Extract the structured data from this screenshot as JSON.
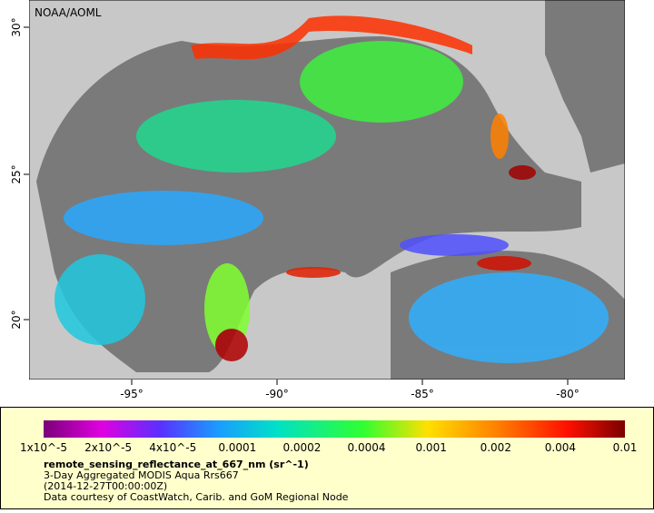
{
  "map": {
    "credit": "NOAA/AOML",
    "lat_ticks": [
      "30°",
      "25°",
      "20°"
    ],
    "lon_ticks": [
      "-95°",
      "-90°",
      "-85°",
      "-80°"
    ]
  },
  "legend": {
    "labels": [
      "1x10^-5",
      "2x10^-5",
      "4x10^-5",
      "0.0001",
      "0.0002",
      "0.0004",
      "0.001",
      "0.002",
      "0.004",
      "0.01"
    ],
    "variable": "remote_sensing_reflectance_at_667_nm (sr^-1)",
    "lines": [
      "3-Day Aggregated MODIS Aqua Rrs667",
      "(2014-12-27T00:00:00Z)",
      "Data courtesy of CoastWatch, Carib. and GoM Regional Node"
    ]
  }
}
